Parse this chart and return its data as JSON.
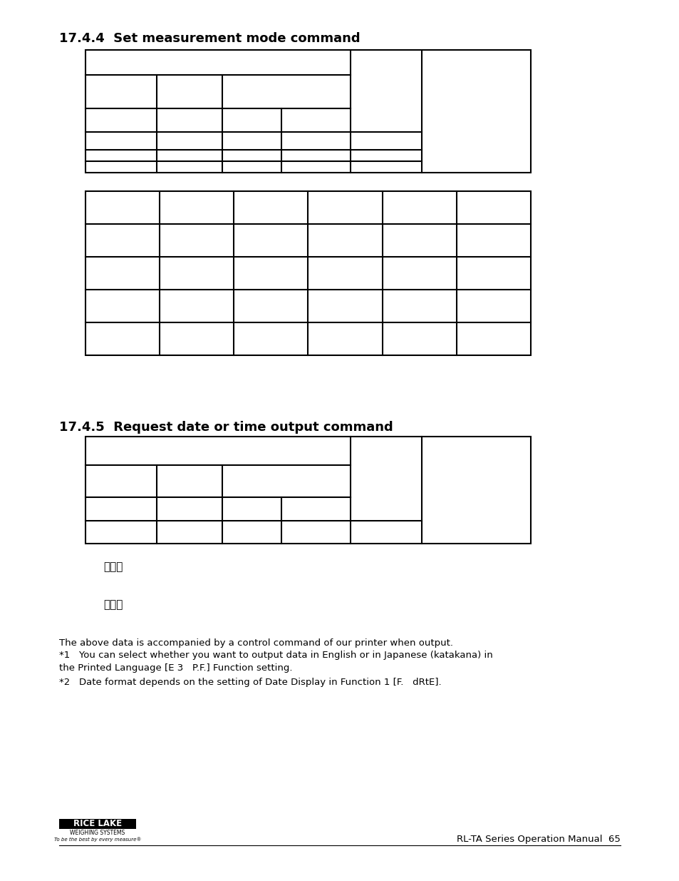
{
  "title1": "17.4.4  Set measurement mode command",
  "title2": "17.4.5  Request date or time output command",
  "bg_color": "#ffffff",
  "text_color": "#000000",
  "footer_text": "RL-TA Series Operation Manual  65",
  "note1": "ヒズケ",
  "note2": "ジコク",
  "body_text1": "The above data is accompanied by a control command of our printer when output.",
  "body_text2": "*1   You can select whether you want to output data in English or in Japanese (katakana) in",
  "body_text3": "the Printed Language [E 3   P.F.] Function setting.",
  "body_text4": "*2   Date format depends on the setting of Date Display in Function 1 [F.   dRtE].",
  "logo_text1": "RICE LAKE",
  "logo_text2": "WEIGHING SYSTEMS",
  "logo_text3": "To be the best by every measure®"
}
